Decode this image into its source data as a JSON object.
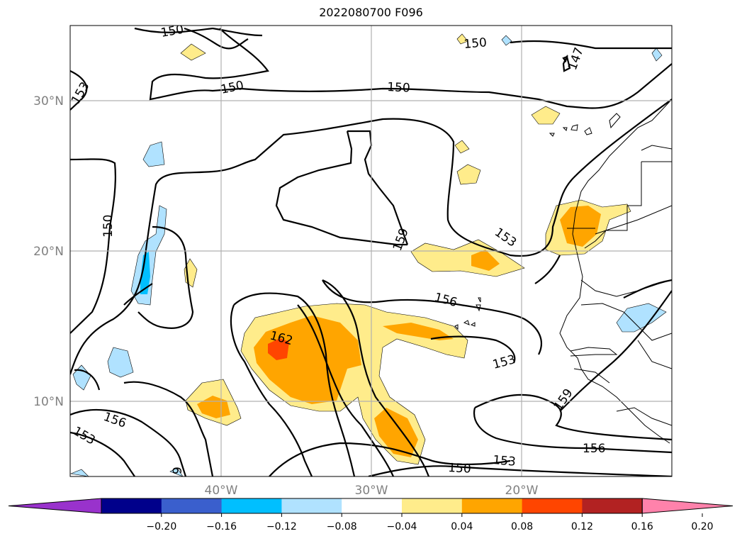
{
  "title": "2022080700 F096",
  "lat_labels": [
    "30°N",
    "20°N",
    "10°N"
  ],
  "lon_labels": [
    "40°W",
    "30°W",
    "20°W"
  ],
  "contour_labels": [
    "150",
    "150",
    "150",
    "150",
    "150",
    "150",
    "153",
    "153",
    "153",
    "153",
    "153",
    "156",
    "156",
    "156",
    "159",
    "159",
    "162",
    "147",
    "9"
  ],
  "colorbar": {
    "ticks": [
      "−0.20",
      "−0.16",
      "−0.12",
      "−0.08",
      "−0.04",
      "0.04",
      "0.08",
      "0.12",
      "0.16",
      "0.20"
    ],
    "colors": [
      "#9932cc",
      "#00008b",
      "#3a5fcd",
      "#00bfff",
      "#b0e2ff",
      "#ffffff",
      "#ffec8b",
      "#ffa500",
      "#ff4500",
      "#b22222",
      "#ff82ab"
    ]
  }
}
